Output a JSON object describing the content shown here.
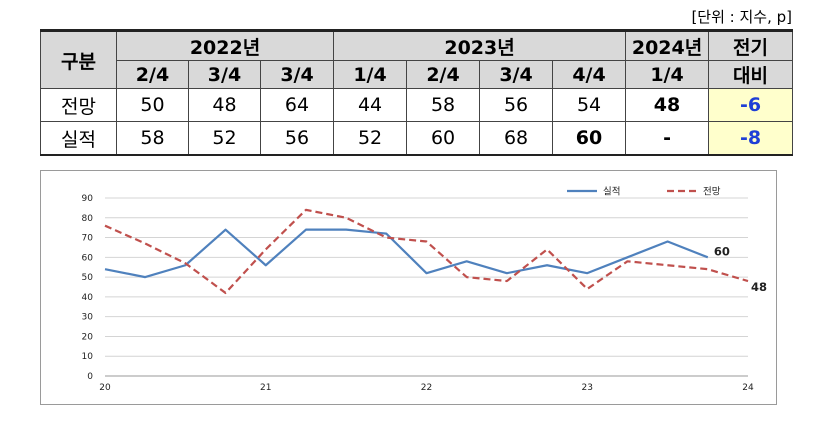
{
  "unit_label": "[단위 : 지수, p]",
  "table": {
    "category_header": "구분",
    "year_groups": [
      {
        "label": "2022년",
        "span": 3
      },
      {
        "label": "2023년",
        "span": 4
      },
      {
        "label": "2024년",
        "span": 1
      }
    ],
    "change_header_line1": "전기",
    "change_header_line2": "대비",
    "quarters": [
      "2/4",
      "3/4",
      "3/4",
      "1/4",
      "2/4",
      "3/4",
      "4/4",
      "1/4"
    ],
    "rows": [
      {
        "label": "전망",
        "values": [
          "50",
          "48",
          "64",
          "44",
          "58",
          "56",
          "54",
          "48"
        ],
        "change": "-6"
      },
      {
        "label": "실적",
        "values": [
          "58",
          "52",
          "56",
          "52",
          "60",
          "68",
          "60",
          "-"
        ],
        "change": "-8"
      }
    ]
  },
  "chart_data": {
    "type": "line",
    "x": [
      20,
      20.25,
      20.5,
      20.75,
      21,
      21.25,
      21.5,
      21.75,
      22,
      22.25,
      22.5,
      22.75,
      23,
      23.25,
      23.5,
      23.75,
      24
    ],
    "series": [
      {
        "name": "실적",
        "color": "#4f81bd",
        "dash": "solid",
        "values": [
          54,
          50,
          56,
          74,
          56,
          74,
          74,
          72,
          52,
          58,
          52,
          56,
          52,
          60,
          68,
          60,
          null
        ],
        "end_label": "60"
      },
      {
        "name": "전망",
        "color": "#c0504d",
        "dash": "dashed",
        "values": [
          76,
          67,
          57,
          42,
          64,
          84,
          80,
          70,
          68,
          50,
          48,
          64,
          44,
          58,
          56,
          54,
          48
        ],
        "end_label": "48"
      }
    ],
    "xlim": [
      20,
      24
    ],
    "ylim": [
      0,
      90
    ],
    "yticks": [
      0,
      10,
      20,
      30,
      40,
      50,
      60,
      70,
      80,
      90
    ],
    "xticks": [
      20,
      21,
      22,
      23,
      24
    ],
    "grid": "horizontal",
    "legend": "top-right"
  }
}
